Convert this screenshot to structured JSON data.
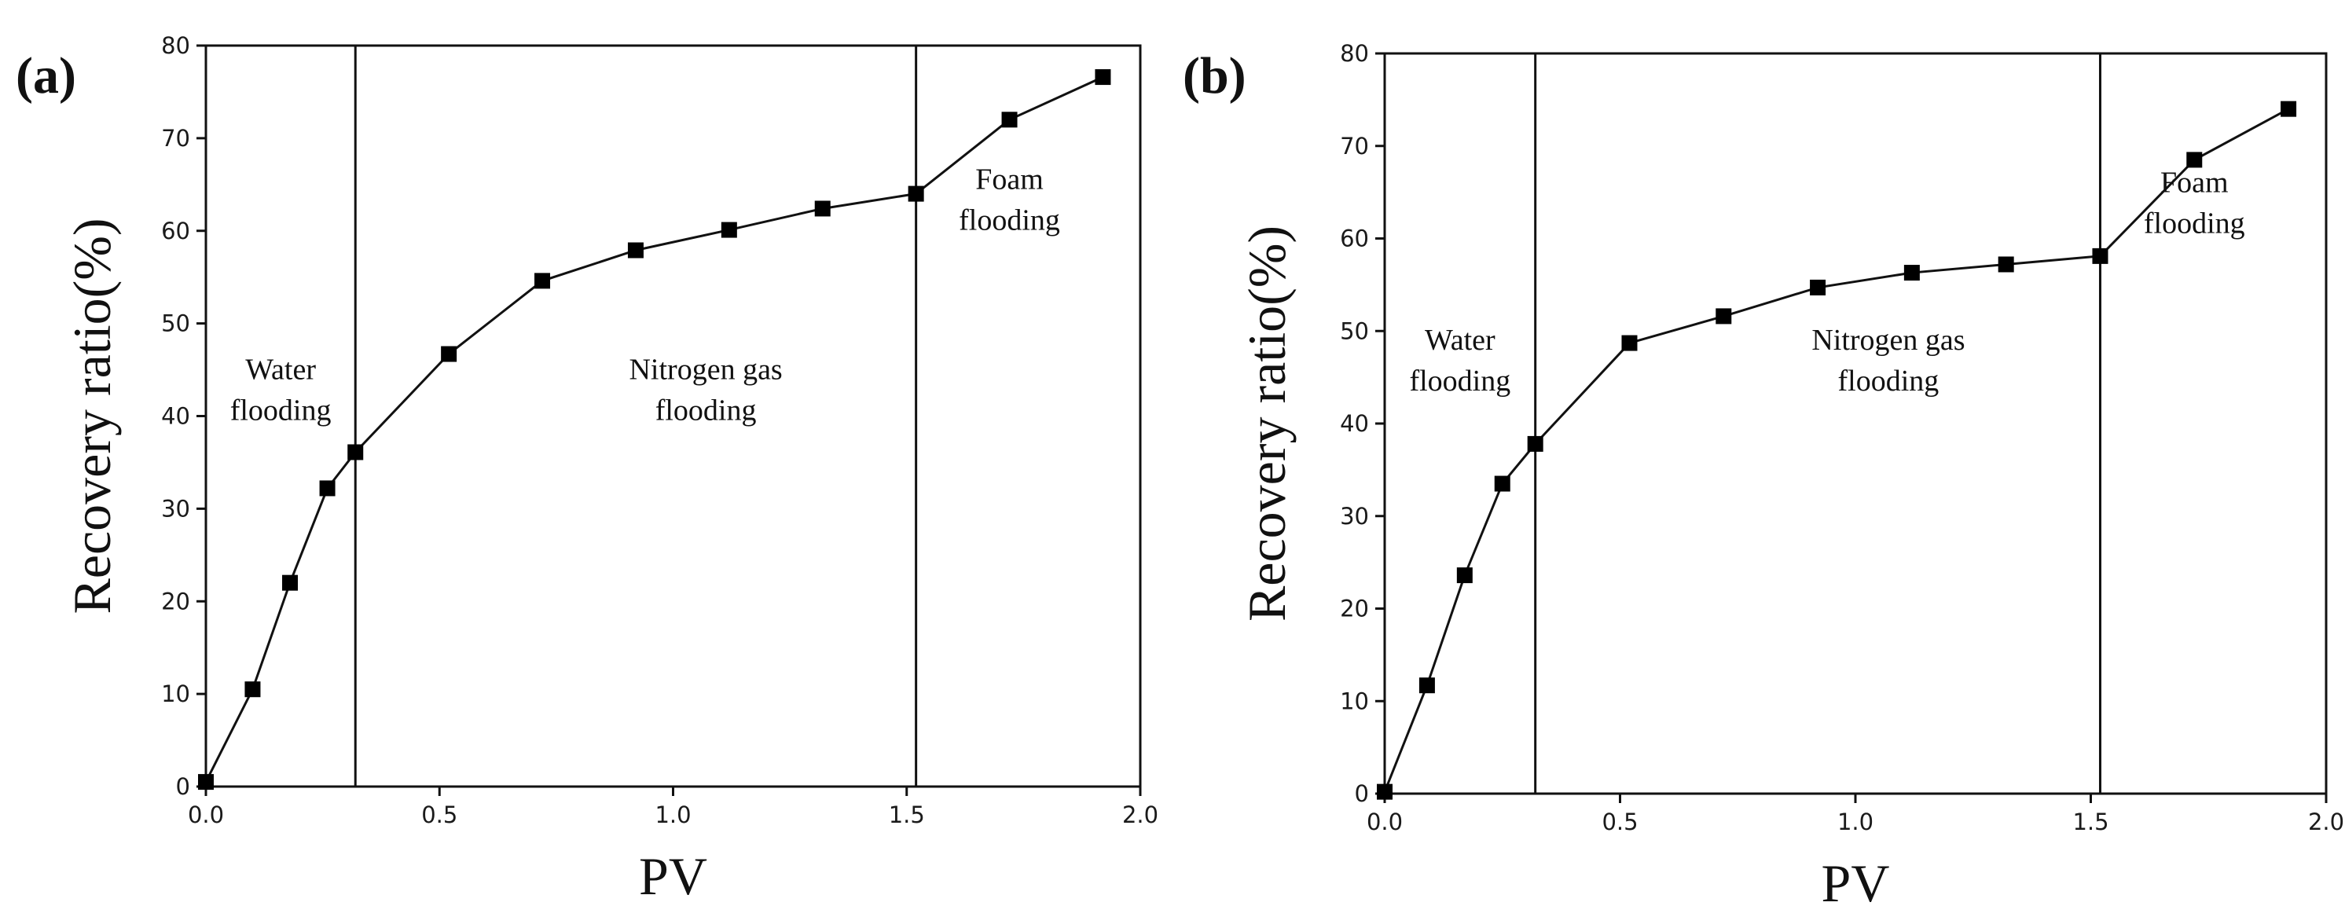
{
  "chart_data": [
    {
      "type": "line",
      "panel_label": "(a)",
      "xlabel": "PV",
      "ylabel": "Recovery ratio(%)",
      "xlim": [
        0,
        2.0
      ],
      "ylim": [
        0,
        80
      ],
      "xticks": [
        0,
        0.5,
        1.0,
        1.5,
        2.0
      ],
      "xtick_labels": [
        "0.0",
        "0.5",
        "1.0",
        "1.5",
        "2.0"
      ],
      "yticks": [
        0,
        10,
        20,
        30,
        40,
        50,
        60,
        70,
        80
      ],
      "ytick_labels": [
        "0",
        "10",
        "20",
        "30",
        "40",
        "50",
        "60",
        "70",
        "80"
      ],
      "dividers_x": [
        0.32,
        1.52
      ],
      "regions": [
        {
          "lines": [
            "Water",
            "flooding"
          ],
          "x": 0.16,
          "y": 44
        },
        {
          "lines": [
            "Nitrogen gas",
            "flooding"
          ],
          "x": 1.07,
          "y": 44
        },
        {
          "lines": [
            "Foam",
            "flooding"
          ],
          "x": 1.72,
          "y": 64.5
        }
      ],
      "series": [
        {
          "name": "Recovery ratio",
          "x": [
            0.0,
            0.1,
            0.18,
            0.26,
            0.32,
            0.52,
            0.72,
            0.92,
            1.12,
            1.32,
            1.52,
            1.72,
            1.92
          ],
          "y": [
            0.5,
            10.5,
            22.0,
            32.2,
            36.1,
            46.7,
            54.6,
            57.9,
            60.1,
            62.4,
            64.0,
            72.0,
            76.6
          ]
        }
      ]
    },
    {
      "type": "line",
      "panel_label": "(b)",
      "xlabel": "PV",
      "ylabel": "Recovery ratio(%)",
      "xlim": [
        0,
        2.0
      ],
      "ylim": [
        0,
        80
      ],
      "xticks": [
        0,
        0.5,
        1.0,
        1.5,
        2.0
      ],
      "xtick_labels": [
        "0.0",
        "0.5",
        "1.0",
        "1.5",
        "2.0"
      ],
      "yticks": [
        0,
        10,
        20,
        30,
        40,
        50,
        60,
        70,
        80
      ],
      "ytick_labels": [
        "0",
        "10",
        "20",
        "30",
        "40",
        "50",
        "60",
        "70",
        "80"
      ],
      "dividers_x": [
        0.32,
        1.52
      ],
      "regions": [
        {
          "lines": [
            "Water",
            "flooding"
          ],
          "x": 0.16,
          "y": 48
        },
        {
          "lines": [
            "Nitrogen gas",
            "flooding"
          ],
          "x": 1.07,
          "y": 48
        },
        {
          "lines": [
            "Foam",
            "flooding"
          ],
          "x": 1.72,
          "y": 65
        }
      ],
      "series": [
        {
          "name": "Recovery ratio",
          "x": [
            0.0,
            0.09,
            0.17,
            0.25,
            0.32,
            0.52,
            0.72,
            0.92,
            1.12,
            1.32,
            1.52,
            1.72,
            1.92
          ],
          "y": [
            0.2,
            11.7,
            23.6,
            33.5,
            37.8,
            48.7,
            51.6,
            54.7,
            56.3,
            57.2,
            58.1,
            68.5,
            74.0
          ]
        }
      ]
    }
  ]
}
